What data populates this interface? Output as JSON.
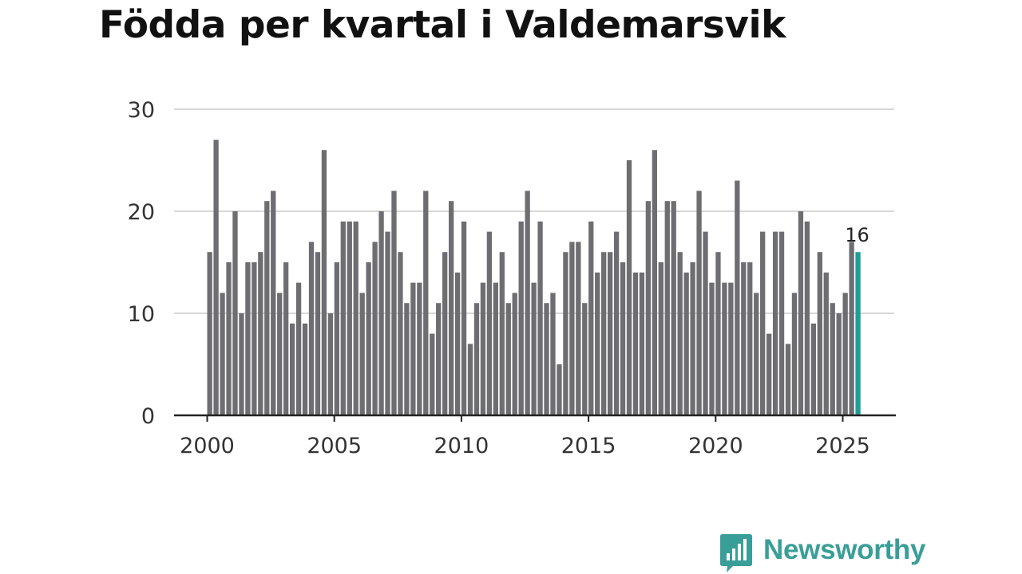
{
  "colors": {
    "bar": "#6e6d72",
    "highlight": "#1f9e95",
    "grid": "#d8d8d8",
    "axis": "#222222",
    "brand": "#3a9e98"
  },
  "brand": {
    "name": "Newsworthy",
    "logo_icon": "bar-chart-speech-bubble-icon"
  },
  "chart_data": {
    "type": "bar",
    "title": "Födda per kvartal i Valdemarsvik",
    "xlabel": "",
    "ylabel": "",
    "ylim": [
      0,
      30
    ],
    "yticks": [
      0,
      10,
      20,
      30
    ],
    "xticks": [
      "2000",
      "2005",
      "2010",
      "2015",
      "2020",
      "2025"
    ],
    "x_start_year": 2000,
    "periods_per_year": 4,
    "grid": true,
    "highlight_last": true,
    "last_value_label": "16",
    "categories": [
      "2000 Q1",
      "2000 Q2",
      "2000 Q3",
      "2000 Q4",
      "2001 Q1",
      "2001 Q2",
      "2001 Q3",
      "2001 Q4",
      "2002 Q1",
      "2002 Q2",
      "2002 Q3",
      "2002 Q4",
      "2003 Q1",
      "2003 Q2",
      "2003 Q3",
      "2003 Q4",
      "2004 Q1",
      "2004 Q2",
      "2004 Q3",
      "2004 Q4",
      "2005 Q1",
      "2005 Q2",
      "2005 Q3",
      "2005 Q4",
      "2006 Q1",
      "2006 Q2",
      "2006 Q3",
      "2006 Q4",
      "2007 Q1",
      "2007 Q2",
      "2007 Q3",
      "2007 Q4",
      "2008 Q1",
      "2008 Q2",
      "2008 Q3",
      "2008 Q4",
      "2009 Q1",
      "2009 Q2",
      "2009 Q3",
      "2009 Q4",
      "2010 Q1",
      "2010 Q2",
      "2010 Q3",
      "2010 Q4",
      "2011 Q1",
      "2011 Q2",
      "2011 Q3",
      "2011 Q4",
      "2012 Q1",
      "2012 Q2",
      "2012 Q3",
      "2012 Q4",
      "2013 Q1",
      "2013 Q2",
      "2013 Q3",
      "2013 Q4",
      "2014 Q1",
      "2014 Q2",
      "2014 Q3",
      "2014 Q4",
      "2015 Q1",
      "2015 Q2",
      "2015 Q3",
      "2015 Q4",
      "2016 Q1",
      "2016 Q2",
      "2016 Q3",
      "2016 Q4",
      "2017 Q1",
      "2017 Q2",
      "2017 Q3",
      "2017 Q4",
      "2018 Q1",
      "2018 Q2",
      "2018 Q3",
      "2018 Q4",
      "2019 Q1",
      "2019 Q2",
      "2019 Q3",
      "2019 Q4",
      "2020 Q1",
      "2020 Q2",
      "2020 Q3",
      "2020 Q4",
      "2021 Q1",
      "2021 Q2",
      "2021 Q3",
      "2021 Q4",
      "2022 Q1",
      "2022 Q2",
      "2022 Q3",
      "2022 Q4",
      "2023 Q1",
      "2023 Q2",
      "2023 Q3",
      "2023 Q4",
      "2024 Q1",
      "2024 Q2",
      "2024 Q3",
      "2024 Q4",
      "2025 Q1",
      "2025 Q2",
      "2025 Q3"
    ],
    "values": [
      16,
      27,
      12,
      15,
      20,
      10,
      15,
      15,
      16,
      21,
      22,
      12,
      15,
      9,
      13,
      9,
      17,
      16,
      26,
      10,
      15,
      19,
      19,
      19,
      12,
      15,
      17,
      20,
      18,
      22,
      16,
      11,
      13,
      13,
      22,
      8,
      11,
      16,
      21,
      14,
      19,
      7,
      11,
      13,
      18,
      13,
      16,
      11,
      12,
      19,
      22,
      13,
      19,
      11,
      12,
      5,
      16,
      17,
      17,
      11,
      19,
      14,
      16,
      16,
      18,
      15,
      25,
      14,
      14,
      21,
      26,
      15,
      21,
      21,
      16,
      14,
      15,
      22,
      18,
      13,
      16,
      13,
      13,
      23,
      15,
      15,
      12,
      18,
      8,
      18,
      18,
      7,
      12,
      20,
      19,
      9,
      16,
      14,
      11,
      10,
      12,
      17,
      16
    ]
  }
}
